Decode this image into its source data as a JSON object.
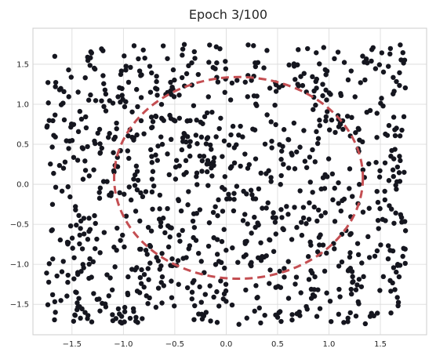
{
  "chart_data": {
    "type": "scatter",
    "title": "Epoch 3/100",
    "xlabel": "",
    "ylabel": "",
    "xlim": [
      -1.88,
      1.95
    ],
    "ylim": [
      -1.88,
      1.95
    ],
    "x_ticks": [
      -1.5,
      -1.0,
      -0.5,
      0.0,
      0.5,
      1.0,
      1.5
    ],
    "y_ticks": [
      -1.5,
      -1.0,
      -0.5,
      0.0,
      0.5,
      1.0,
      1.5
    ],
    "x_tick_labels": [
      "−1.5",
      "−1.0",
      "−0.5",
      "0.0",
      "0.5",
      "1.0",
      "1.5"
    ],
    "y_tick_labels": [
      "−1.5",
      "−1.0",
      "−0.5",
      "0.0",
      "0.5",
      "1.0",
      "1.5"
    ],
    "grid": true,
    "point_color": "#15161f",
    "point_count": 1000,
    "point_distribution": "uniform",
    "point_range": {
      "x": [
        -1.75,
        1.75
      ],
      "y": [
        -1.75,
        1.75
      ]
    },
    "decision_boundary": {
      "shape": "ellipse",
      "style": "dashed",
      "color": "#c44e52",
      "center": [
        0.12,
        0.08
      ],
      "radius_x": 1.21,
      "radius_y": 1.26
    }
  }
}
